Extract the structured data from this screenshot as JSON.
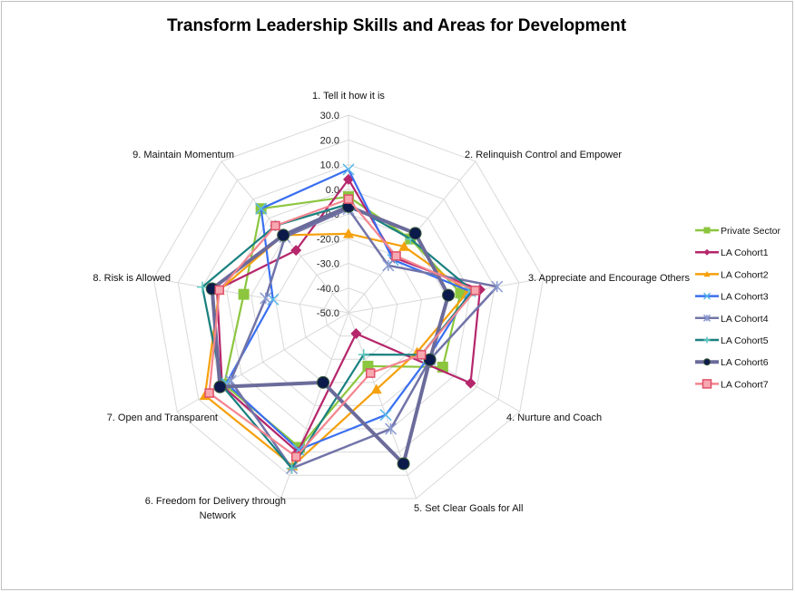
{
  "chart_data": {
    "type": "radar",
    "title": "Transform Leadership Skills and Areas for Development",
    "categories": [
      "1. Tell it how it is",
      "2.  Relinquish Control and Empower",
      "3.  Appreciate and Encourage Others",
      "4.  Nurture and Coach",
      "5.  Set Clear Goals for All",
      "6.  Freedom for Delivery through Network",
      "7.  Open and Transparent",
      "8.  Risk is Allowed",
      "9.  Maintain Momentum"
    ],
    "rlim": [
      -50,
      30
    ],
    "ticks": [
      "-50.0",
      "-40.0",
      "-30.0",
      "-20.0",
      "-10.0",
      "0.0",
      "10.0",
      "20.0",
      "30.0"
    ],
    "grid": true,
    "legend": "right",
    "series": [
      {
        "name": "Private Sector",
        "color": "#8cc63f",
        "marker": "square",
        "values": [
          -3,
          -11,
          -4,
          -6,
          -27,
          8,
          8,
          -7,
          5
        ]
      },
      {
        "name": "LA Cohort1",
        "color": "#b5266b",
        "marker": "diamond",
        "values": [
          4,
          -21,
          4,
          7,
          -41,
          10,
          9,
          4,
          -17
        ]
      },
      {
        "name": "LA Cohort2",
        "color": "#f5a00c",
        "marker": "triangle",
        "values": [
          -18,
          -15,
          -1,
          -18,
          -17,
          16,
          17,
          3,
          -9
        ]
      },
      {
        "name": "LA Cohort3",
        "color": "#3a6ff0",
        "marker": "x",
        "values": [
          8,
          -22,
          0,
          -13,
          -6,
          9,
          7,
          -19,
          5
        ]
      },
      {
        "name": "LA Cohort4",
        "color": "#7274a8",
        "marker": "star",
        "values": [
          -8,
          -25,
          11,
          -12,
          0,
          17,
          5,
          -16,
          -10
        ]
      },
      {
        "name": "LA Cohort5",
        "color": "#1a8080",
        "marker": "plus",
        "values": [
          -6,
          -11,
          1,
          -16,
          -32,
          17,
          9,
          10,
          -4
        ]
      },
      {
        "name": "LA Cohort6",
        "color": "#6b6b9b",
        "marker": "circle",
        "values": [
          -7,
          -8,
          -9,
          -12,
          15,
          -20,
          10,
          6,
          -9
        ]
      },
      {
        "name": "LA Cohort7",
        "color": "#f4858f",
        "marker": "square-open",
        "values": [
          -4,
          -20,
          2,
          -16,
          -24,
          12,
          15,
          3,
          -4
        ]
      }
    ]
  }
}
